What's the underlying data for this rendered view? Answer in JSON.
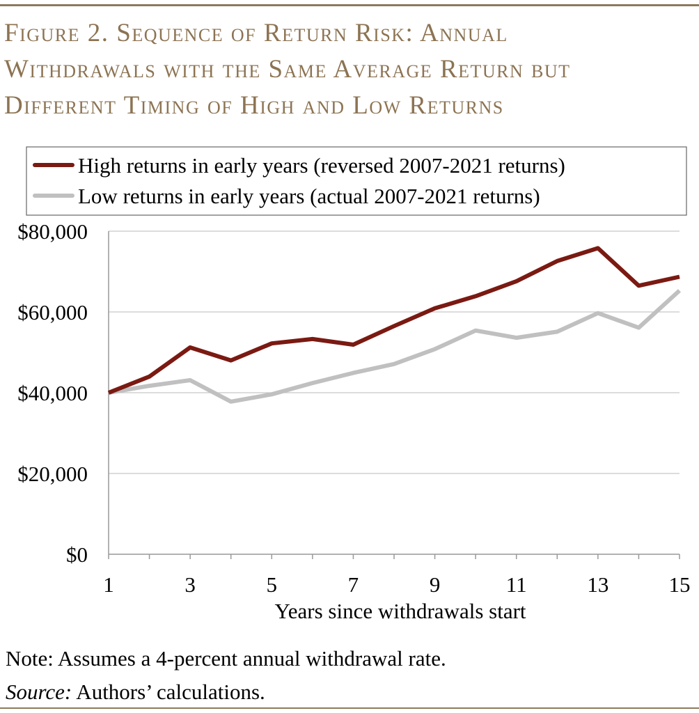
{
  "figure": {
    "title_lines": [
      "Figure 2. Sequence of Return Risk: Annual",
      "Withdrawals with the Same Average Return but",
      "Different Timing of High and Low Returns"
    ],
    "note": "Note: Assumes a 4-percent annual withdrawal rate.",
    "source_label": "Source:",
    "source_text": " Authors’ calculations."
  },
  "chart_data": {
    "type": "line",
    "xlabel": "Years since withdrawals start",
    "ylabel": "",
    "xlim": [
      1,
      15
    ],
    "ylim": [
      0,
      80000
    ],
    "x": [
      1,
      2,
      3,
      4,
      5,
      6,
      7,
      8,
      9,
      10,
      11,
      12,
      13,
      14,
      15
    ],
    "x_ticks": [
      1,
      3,
      5,
      7,
      9,
      11,
      13,
      15
    ],
    "y_ticks": [
      0,
      20000,
      40000,
      60000,
      80000
    ],
    "y_tick_labels": [
      "$0",
      "$20,000",
      "$40,000",
      "$60,000",
      "$80,000"
    ],
    "grid": true,
    "legend_position": "top",
    "series": [
      {
        "name": "High returns in early years (reversed 2007-2021 returns)",
        "color": "#7a1a12",
        "values": [
          40000,
          44000,
          51200,
          48000,
          52200,
          53300,
          51900,
          56500,
          60900,
          63900,
          67600,
          72600,
          75800,
          66500,
          68700
        ]
      },
      {
        "name": "Low returns in early years (actual 2007-2021 returns)",
        "color": "#c0c0c0",
        "values": [
          40000,
          41700,
          43100,
          37800,
          39600,
          42400,
          44900,
          47100,
          50800,
          55400,
          53600,
          55100,
          59700,
          56100,
          65300
        ]
      }
    ]
  }
}
